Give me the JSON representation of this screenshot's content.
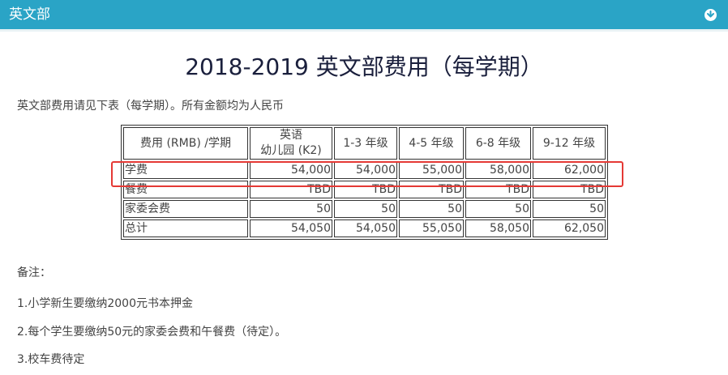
{
  "header": {
    "title": "英文部",
    "icon": "circle-chevron-down-icon"
  },
  "page_title": "2018-2019 英文部费用（每学期）",
  "intro": "英文部费用请见下表（每学期）。所有金额均为人民币",
  "table": {
    "headers": [
      "费用 (RMB) /学期",
      "英语\n幼儿园 (K2)",
      "1-3 年级",
      "4-5 年级",
      "6-8 年级",
      "9-12 年级"
    ],
    "rows": [
      [
        "学费",
        "54,000",
        "54,000",
        "55,000",
        "58,000",
        "62,000"
      ],
      [
        "餐费",
        "TBD",
        "TBD",
        "TBD",
        "TBD",
        "TBD"
      ],
      [
        "家委会费",
        "50",
        "50",
        "50",
        "50",
        "50"
      ],
      [
        "总计",
        "54,050",
        "54,050",
        "55,050",
        "58,050",
        "62,050"
      ]
    ]
  },
  "notes": {
    "heading": "备注：",
    "items": [
      "1.小学新生要缴纳2000元书本押金",
      "2.每个学生要缴纳50元的家委会费和午餐费（待定）。",
      "3.校车费待定"
    ]
  },
  "colors": {
    "header_bg": "#2aa4c6",
    "highlight": "#e53935",
    "title": "#1a1f3c"
  }
}
